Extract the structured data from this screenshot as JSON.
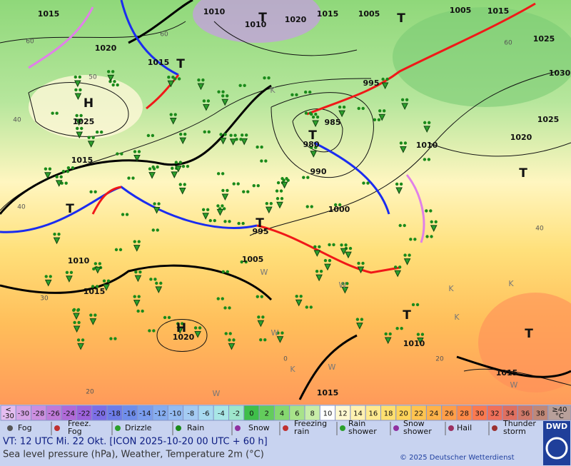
{
  "map": {
    "pressure_labels": [
      "1015",
      "1010",
      "1010",
      "1020",
      "1015",
      "1005",
      "1005",
      "1015",
      "1020",
      "1015",
      "1025",
      "1030",
      "995",
      "1025",
      "985",
      "980",
      "1010",
      "1020",
      "1025",
      "1015",
      "990",
      "1000",
      "995",
      "1005",
      "1010",
      "1015",
      "1020",
      "1010",
      "1015",
      "1015"
    ],
    "centers": [
      "H",
      "T",
      "T",
      "T",
      "T",
      "T",
      "T",
      "T",
      "T",
      "H",
      "T"
    ],
    "grid_labels": [
      "60",
      "50",
      "40",
      "40",
      "30",
      "20",
      "0",
      "20",
      "40",
      "60",
      "60"
    ],
    "marks": [
      "K",
      "K",
      "W",
      "W",
      "W",
      "K",
      "K",
      "W",
      "W",
      "K",
      "W"
    ]
  },
  "legend": {
    "scale_low": [
      "<",
      "-30"
    ],
    "scale": [
      {
        "label": "-30",
        "color": "#d6a3e6"
      },
      {
        "label": "-28",
        "color": "#cc8fe0"
      },
      {
        "label": "-26",
        "color": "#c07ad9"
      },
      {
        "label": "-24",
        "color": "#b06ad8"
      },
      {
        "label": "-22",
        "color": "#9d62dc"
      },
      {
        "label": "-20",
        "color": "#7c6ee6"
      },
      {
        "label": "-18",
        "color": "#6d7ce8"
      },
      {
        "label": "-16",
        "color": "#6f8deb"
      },
      {
        "label": "-14",
        "color": "#7a9dee"
      },
      {
        "label": "-12",
        "color": "#86adf0"
      },
      {
        "label": "-10",
        "color": "#95bcf2"
      },
      {
        "label": "-8",
        "color": "#a4cbf3"
      },
      {
        "label": "-6",
        "color": "#a8daf0"
      },
      {
        "label": "-4",
        "color": "#a8e6e6"
      },
      {
        "label": "-2",
        "color": "#9ee6cc"
      },
      {
        "label": "0",
        "color": "#3fbf4a"
      },
      {
        "label": "2",
        "color": "#63cc5c"
      },
      {
        "label": "4",
        "color": "#86d870"
      },
      {
        "label": "6",
        "color": "#a8e38a"
      },
      {
        "label": "8",
        "color": "#c8eda8"
      },
      {
        "label": "10",
        "color": "#ffffff"
      },
      {
        "label": "12",
        "color": "#fff8d0"
      },
      {
        "label": "14",
        "color": "#fff1b0"
      },
      {
        "label": "16",
        "color": "#ffea90"
      },
      {
        "label": "18",
        "color": "#ffe070"
      },
      {
        "label": "20",
        "color": "#ffd45a"
      },
      {
        "label": "22",
        "color": "#ffc450"
      },
      {
        "label": "24",
        "color": "#ffb24a"
      },
      {
        "label": "26",
        "color": "#ff9e48"
      },
      {
        "label": "28",
        "color": "#ff8a48"
      },
      {
        "label": "30",
        "color": "#fb7a50"
      },
      {
        "label": "32",
        "color": "#f0705a"
      },
      {
        "label": "34",
        "color": "#e07060"
      },
      {
        "label": "36",
        "color": "#d07a6a"
      },
      {
        "label": "38",
        "color": "#c08878"
      }
    ],
    "scale_high": [
      "≥40",
      "°C"
    ],
    "weather": [
      [
        "Fog"
      ],
      [
        "Freez.",
        "Fog"
      ],
      [
        "Drizzle"
      ],
      [
        "Rain"
      ],
      [
        "Snow"
      ],
      [
        "Freezing",
        "rain"
      ],
      [
        "Rain",
        "shower"
      ],
      [
        "Snow",
        "shower"
      ],
      [
        "Hail"
      ],
      [
        "Thunder",
        "storm"
      ]
    ]
  },
  "footer": {
    "valid_time": "VT: 12 UTC Mi.   22 Okt. [ICON 2025-10-20  00 UTC + 60 h]",
    "description": "Sea level pressure (hPa), Weather, Temperature 2m (°C)",
    "copyright": "© 2025 Deutscher Wetterdienst",
    "logo": "DWD"
  }
}
